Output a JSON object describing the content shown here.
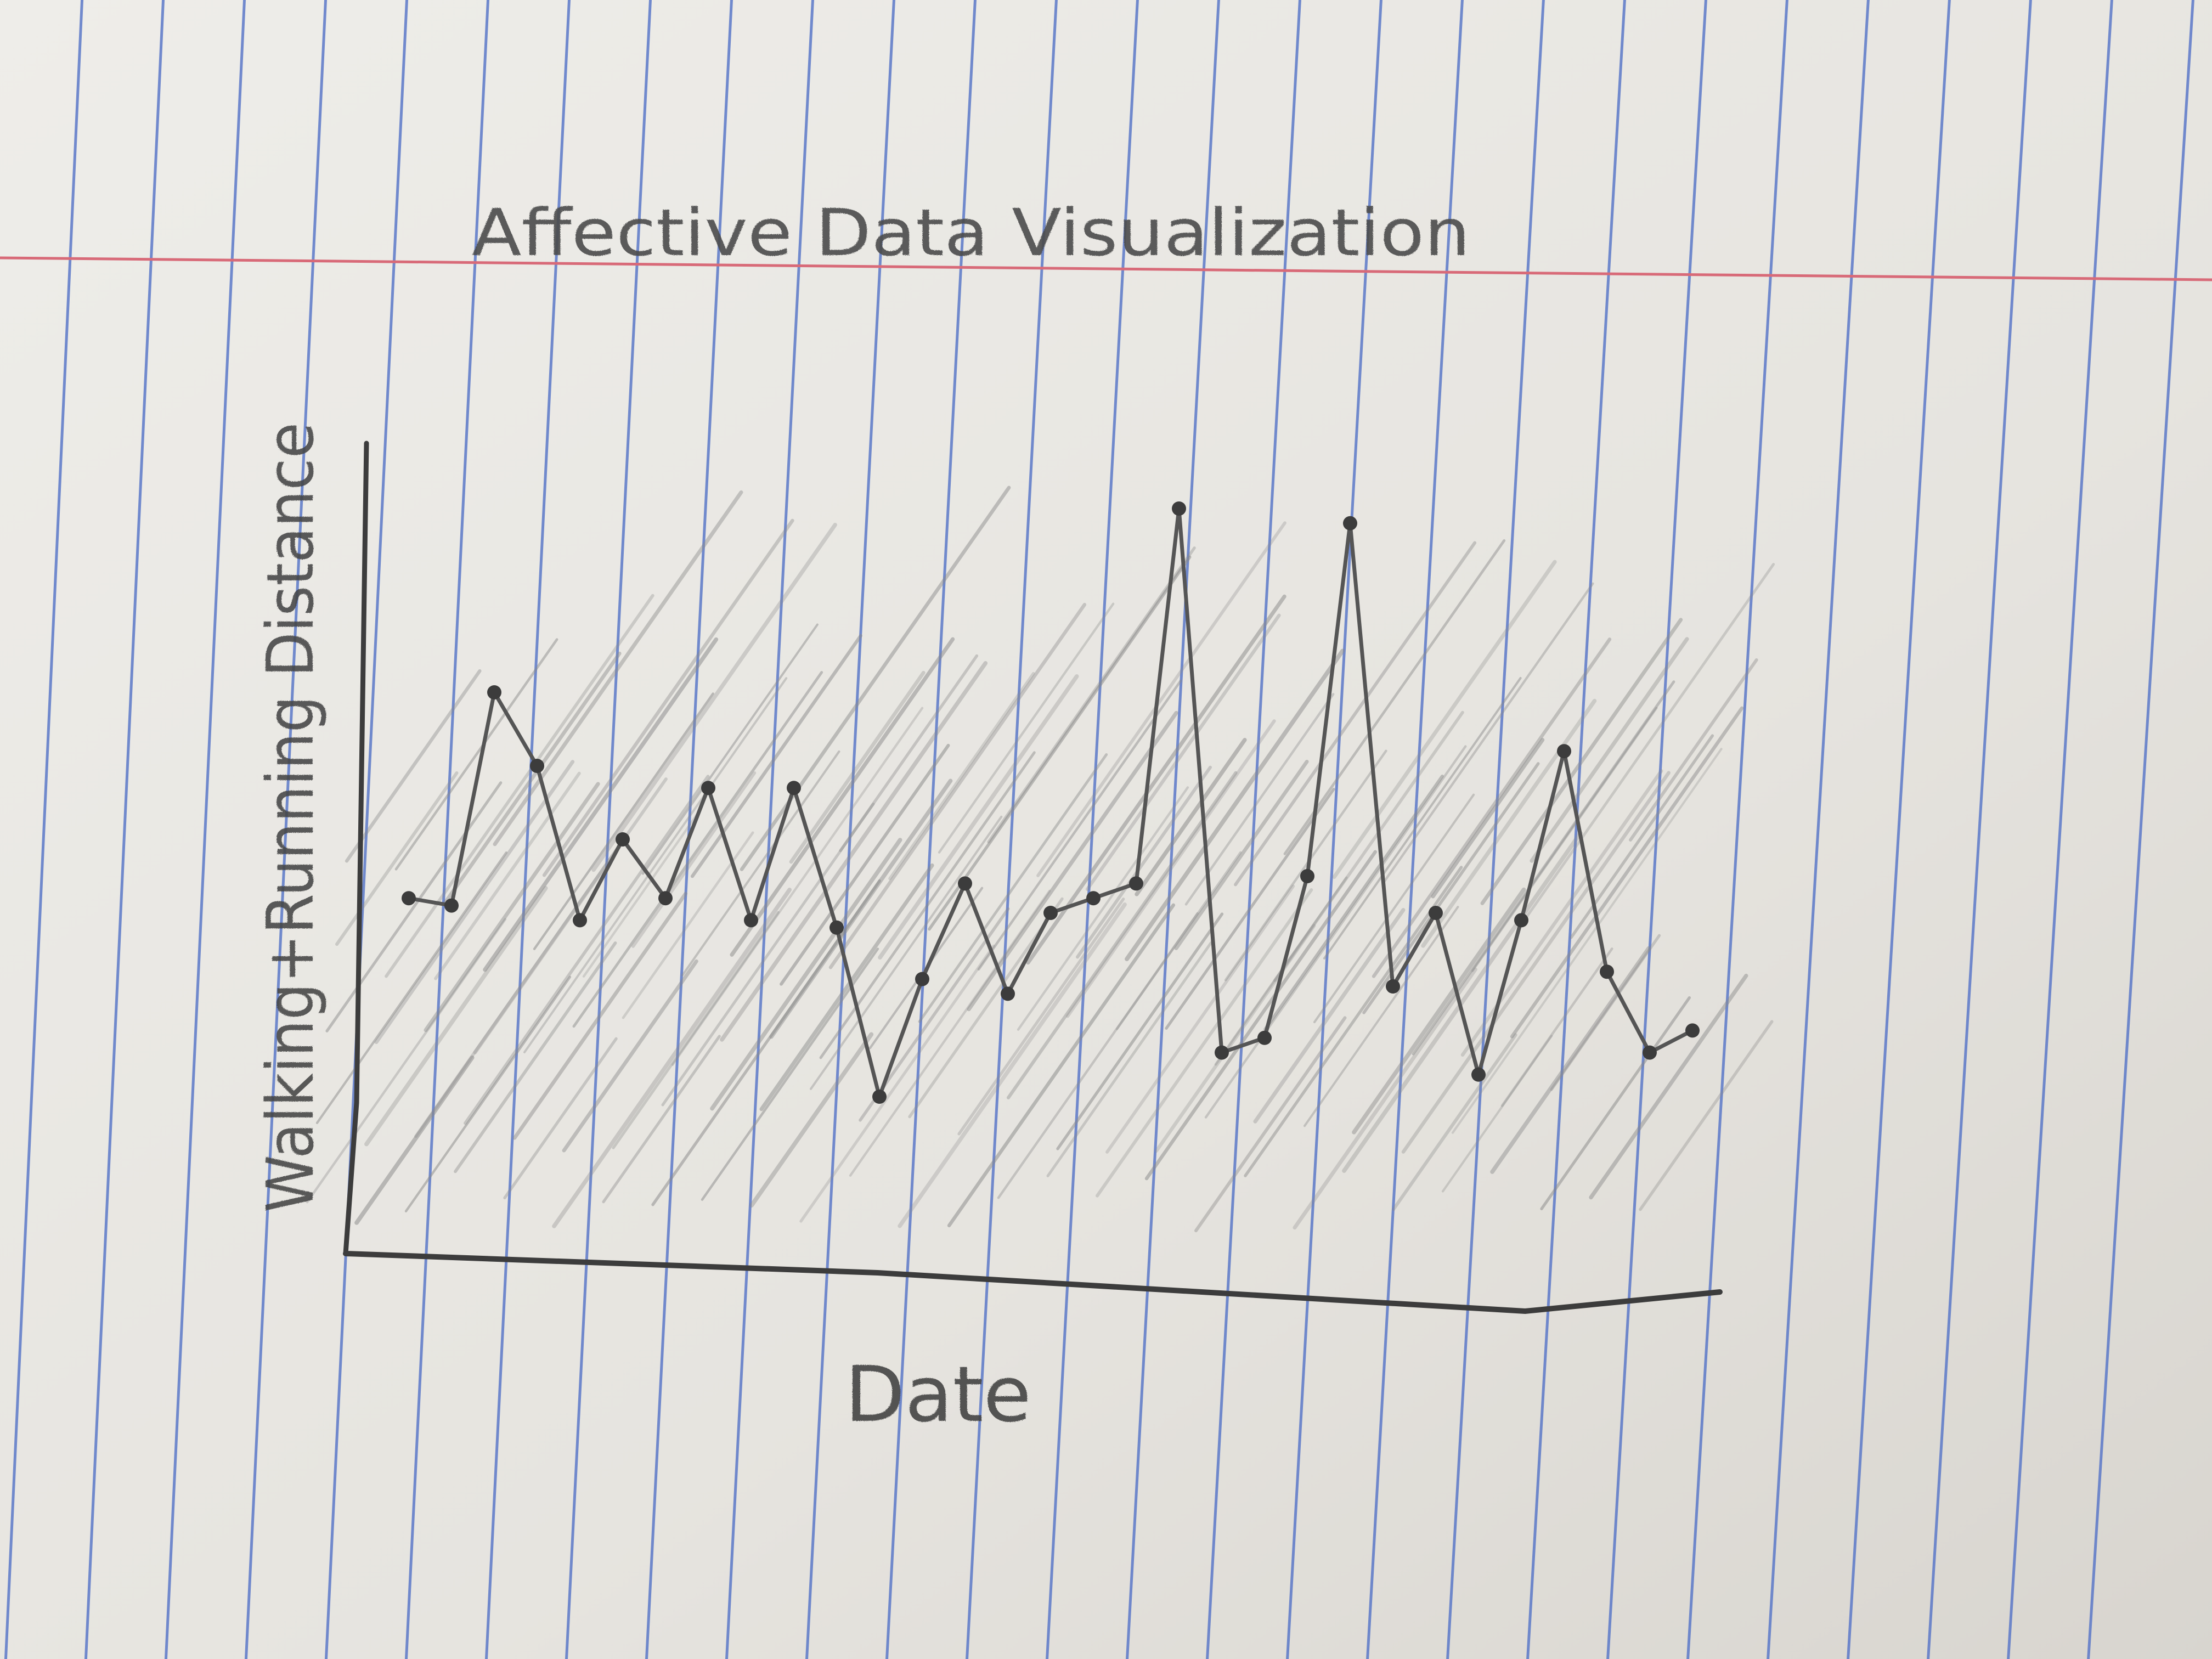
{
  "colors": {
    "paper": "#e7e5e0",
    "paper_shadow": "#cfccc6",
    "rule_line": "#5a78c8",
    "margin_line": "#d86a78",
    "pencil": "#555555",
    "pencil_dark": "#3c3c3c",
    "shading": "#8a8a8a"
  },
  "chart_data": {
    "type": "line",
    "title": "Affective Data Visualization",
    "xlabel": "Date",
    "ylabel": "Walking+Running Distance",
    "grid": false,
    "legend": "none",
    "ylim": [
      0,
      100
    ],
    "series": [
      {
        "values": [
          42,
          41,
          70,
          60,
          39,
          50,
          42,
          57,
          39,
          57,
          38,
          15,
          31,
          44,
          29,
          40,
          42,
          44,
          95,
          21,
          23,
          45,
          93,
          30,
          40,
          18,
          39,
          62,
          32,
          21,
          24
        ]
      }
    ]
  }
}
